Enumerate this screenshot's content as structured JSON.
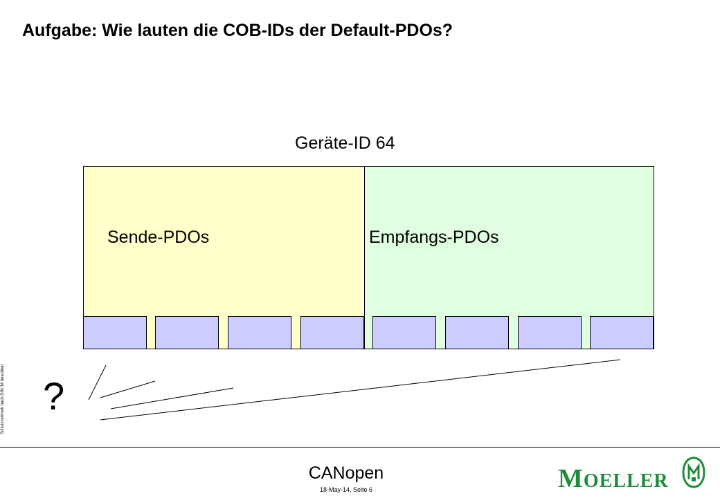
{
  "slide": {
    "title": "Aufgabe: Wie lauten die COB-IDs der Default-PDOs?",
    "device_label": "Geräte-ID 64",
    "send_label": "Sende-PDOs",
    "receive_label": "Empfangs-PDOs",
    "question_mark": "?",
    "pdo_slots": 8
  },
  "colors": {
    "send_fill": "#ffffcc",
    "receive_fill": "#e0ffe0",
    "pdo_fill": "#ccccff",
    "logo": "#1f8c3a"
  },
  "side_note": "Schutzvermerk nach DIN 34 beachten",
  "footer": {
    "title": "CANopen",
    "meta": "18-May-14,  Seite 6",
    "logo_first": "M",
    "logo_rest": "OELLER"
  }
}
